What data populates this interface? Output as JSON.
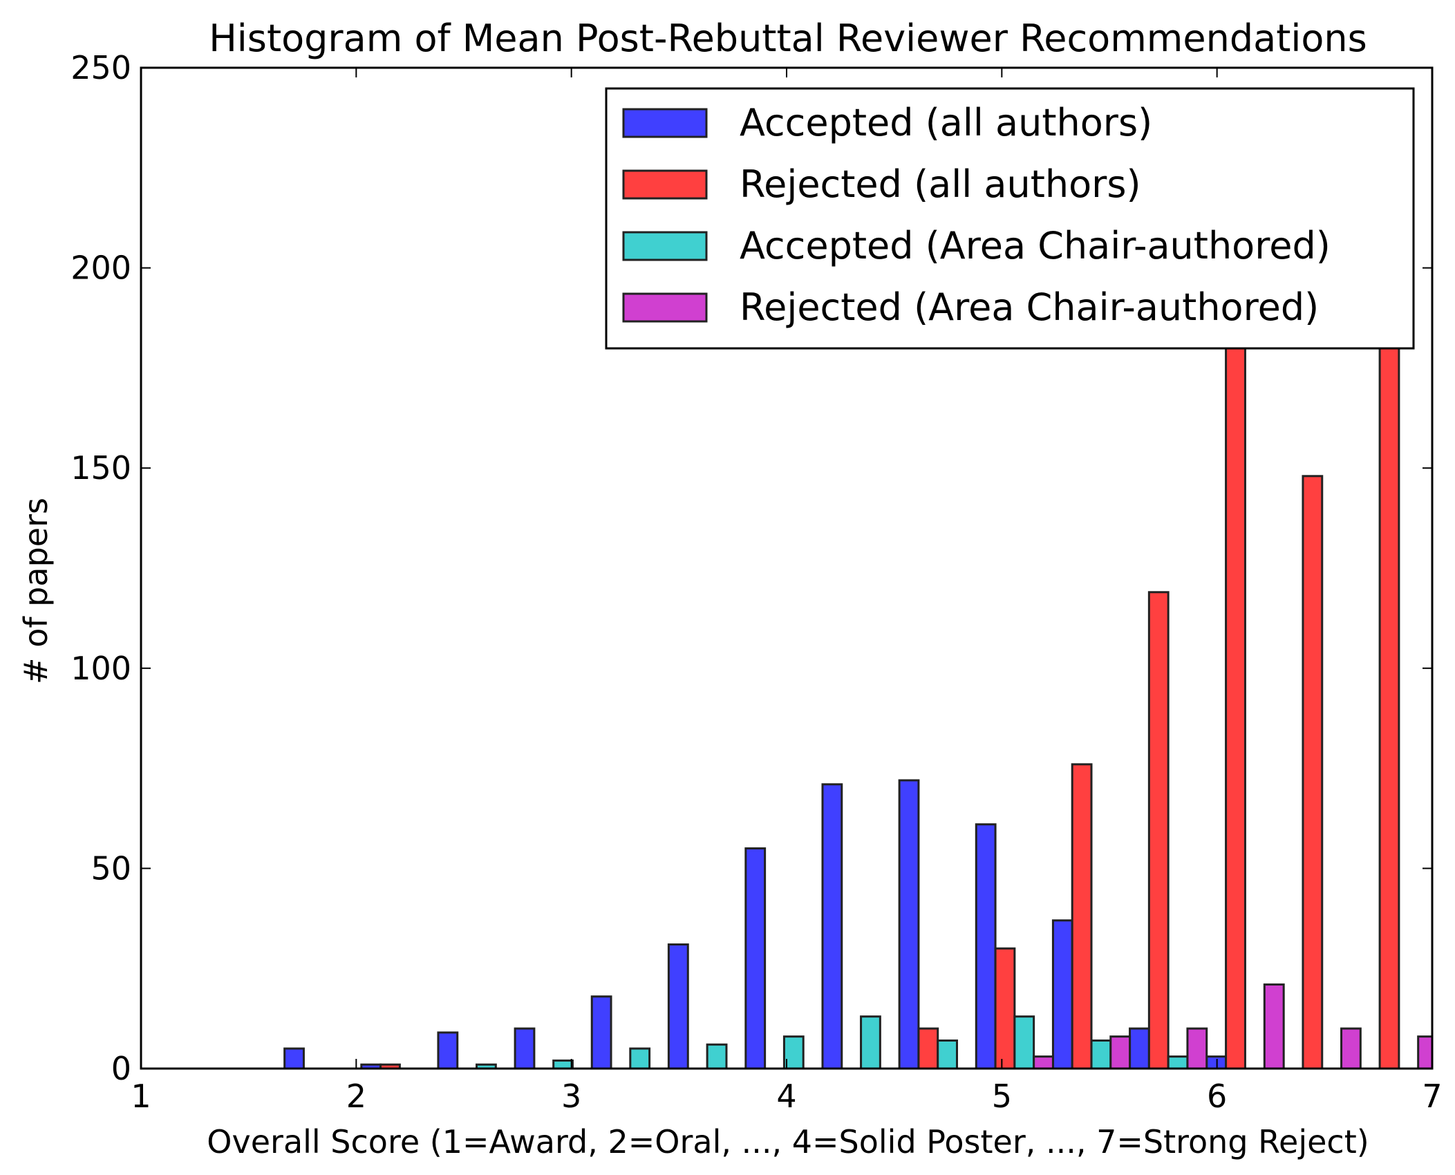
{
  "chart_data": {
    "type": "bar",
    "title": "Histogram of Mean Post-Rebuttal Reviewer Recommendations",
    "xlabel": "Overall Score (1=Award, 2=Oral, ..., 4=Solid Poster, ..., 7=Strong Reject)",
    "ylabel": "# of papers",
    "xlim": [
      1,
      7
    ],
    "ylim": [
      0,
      250
    ],
    "xticks": [
      "1",
      "2",
      "3",
      "4",
      "5",
      "6",
      "7"
    ],
    "yticks": [
      "0",
      "50",
      "100",
      "150",
      "200",
      "250"
    ],
    "grid": false,
    "legend_position": "top-right",
    "bin_edges": [
      1.667,
      2.024,
      2.381,
      2.738,
      3.095,
      3.452,
      3.81,
      4.167,
      4.524,
      4.881,
      5.238,
      5.595,
      5.952,
      6.31,
      6.667,
      7.024
    ],
    "series": [
      {
        "name": "Accepted (all authors)",
        "color": "#4040ff",
        "values": [
          5,
          1,
          9,
          10,
          18,
          31,
          55,
          71,
          72,
          61,
          37,
          10,
          3,
          0,
          0
        ]
      },
      {
        "name": "Rejected (all authors)",
        "color": "#ff4040",
        "values": [
          0,
          1,
          0,
          0,
          0,
          0,
          0,
          0,
          10,
          30,
          76,
          119,
          214,
          148,
          233
        ]
      },
      {
        "name": "Accepted (Area Chair-authored)",
        "color": "#40d0d0",
        "values": [
          0,
          0,
          1,
          2,
          5,
          6,
          8,
          13,
          7,
          13,
          7,
          3,
          0,
          0,
          0
        ]
      },
      {
        "name": "Rejected (Area Chair-authored)",
        "color": "#d040d0",
        "values": [
          0,
          0,
          0,
          0,
          0,
          0,
          0,
          0,
          0,
          3,
          8,
          10,
          21,
          10,
          8
        ]
      }
    ]
  }
}
